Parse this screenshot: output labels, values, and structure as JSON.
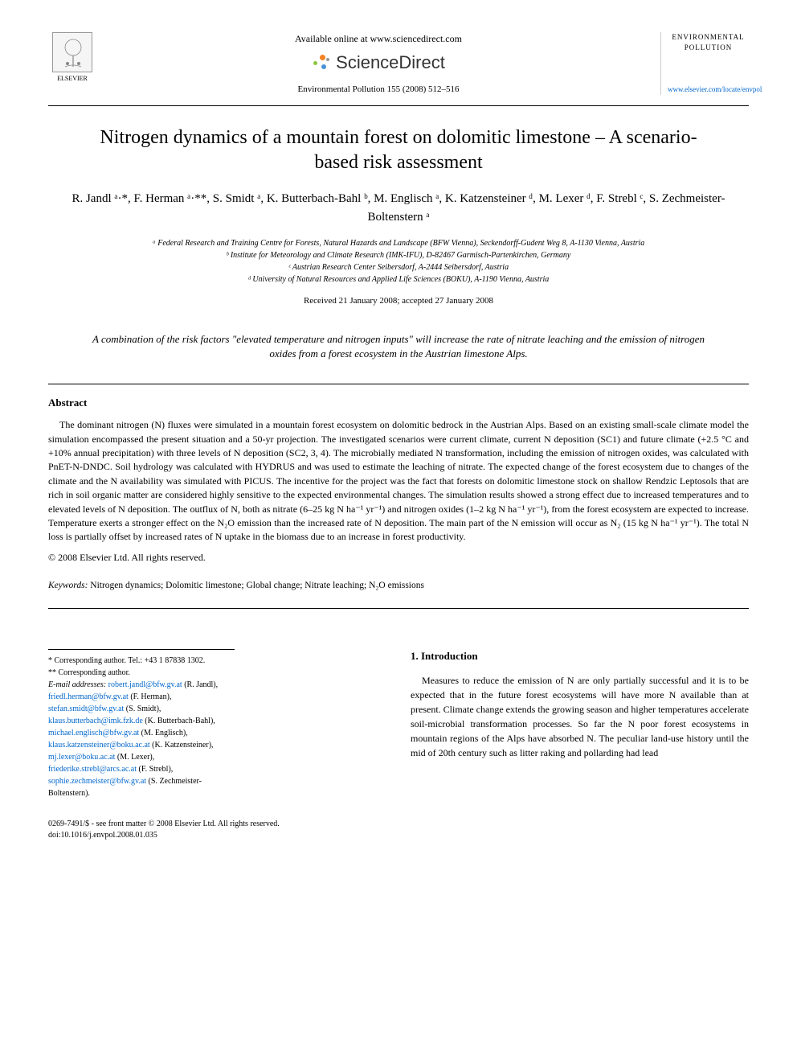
{
  "header": {
    "availableOnline": "Available online at www.sciencedirect.com",
    "scienceDirect": "ScienceDirect",
    "citation": "Environmental Pollution 155 (2008) 512–516",
    "publisherName": "ELSEVIER",
    "journalName": "ENVIRONMENTAL POLLUTION",
    "journalLink": "www.elsevier.com/locate/envpol"
  },
  "title": "Nitrogen dynamics of a mountain forest on dolomitic limestone – A scenario-based risk assessment",
  "authors": "R. Jandl ᵃ·*, F. Herman ᵃ·**, S. Smidt ᵃ, K. Butterbach-Bahl ᵇ, M. Englisch ᵃ, K. Katzensteiner ᵈ, M. Lexer ᵈ, F. Strebl ᶜ, S. Zechmeister-Boltenstern ᵃ",
  "affiliations": {
    "a": "ᵃ Federal Research and Training Centre for Forests, Natural Hazards and Landscape (BFW Vienna), Seckendorff-Gudent Weg 8, A-1130 Vienna, Austria",
    "b": "ᵇ Institute for Meteorology and Climate Research (IMK-IFU), D-82467 Garmisch-Partenkirchen, Germany",
    "c": "ᶜ Austrian Research Center Seibersdorf, A-2444 Seibersdorf, Austria",
    "d": "ᵈ University of Natural Resources and Applied Life Sciences (BOKU), A-1190 Vienna, Austria"
  },
  "dates": "Received 21 January 2008; accepted 27 January 2008",
  "highlight": "A combination of the risk factors \"elevated temperature and nitrogen inputs\" will increase the rate of nitrate leaching and the emission of nitrogen oxides from a forest ecosystem in the Austrian limestone Alps.",
  "abstractHeading": "Abstract",
  "abstractText": "The dominant nitrogen (N) fluxes were simulated in a mountain forest ecosystem on dolomitic bedrock in the Austrian Alps. Based on an existing small-scale climate model the simulation encompassed the present situation and a 50-yr projection. The investigated scenarios were current climate, current N deposition (SC1) and future climate (+2.5 °C and +10% annual precipitation) with three levels of N deposition (SC2, 3, 4). The microbially mediated N transformation, including the emission of nitrogen oxides, was calculated with PnET-N-DNDC. Soil hydrology was calculated with HYDRUS and was used to estimate the leaching of nitrate. The expected change of the forest ecosystem due to changes of the climate and the N availability was simulated with PICUS. The incentive for the project was the fact that forests on dolomitic limestone stock on shallow Rendzic Leptosols that are rich in soil organic matter are considered highly sensitive to the expected environmental changes. The simulation results showed a strong effect due to increased temperatures and to elevated levels of N deposition. The outflux of N, both as nitrate (6–25 kg N ha⁻¹ yr⁻¹) and nitrogen oxides (1–2 kg N ha⁻¹ yr⁻¹), from the forest ecosystem are expected to increase. Temperature exerts a stronger effect on the N₂O emission than the increased rate of N deposition. The main part of the N emission will occur as N₂ (15 kg N ha⁻¹ yr⁻¹). The total N loss is partially offset by increased rates of N uptake in the biomass due to an increase in forest productivity.",
  "copyright": "© 2008 Elsevier Ltd. All rights reserved.",
  "keywordsLabel": "Keywords:",
  "keywords": "Nitrogen dynamics; Dolomitic limestone; Global change; Nitrate leaching; N₂O emissions",
  "footnotes": {
    "corr1": "* Corresponding author. Tel.: +43 1 87838 1302.",
    "corr2": "** Corresponding author.",
    "emailLabel": "E-mail addresses:",
    "emails": [
      {
        "addr": "robert.jandl@bfw.gv.at",
        "name": "(R. Jandl)"
      },
      {
        "addr": "friedl.herman@bfw.gv.at",
        "name": "(F. Herman)"
      },
      {
        "addr": "stefan.smidt@bfw.gv.at",
        "name": "(S. Smidt)"
      },
      {
        "addr": "klaus.butterbach@imk.fzk.de",
        "name": "(K. Butterbach-Bahl)"
      },
      {
        "addr": "michael.englisch@bfw.gv.at",
        "name": "(M. Englisch)"
      },
      {
        "addr": "klaus.katzensteiner@boku.ac.at",
        "name": "(K. Katzensteiner)"
      },
      {
        "addr": "mj.lexer@boku.ac.at",
        "name": "(M. Lexer)"
      },
      {
        "addr": "friederike.strebl@arcs.ac.at",
        "name": "(F. Strebl)"
      },
      {
        "addr": "sophie.zechmeister@bfw.gv.at",
        "name": "(S. Zechmeister-Boltenstern)"
      }
    ]
  },
  "introHeading": "1. Introduction",
  "introText": "Measures to reduce the emission of N are only partially successful and it is to be expected that in the future forest ecosystems will have more N available than at present. Climate change extends the growing season and higher temperatures accelerate soil-microbial transformation processes. So far the N poor forest ecosystems in mountain regions of the Alps have absorbed N. The peculiar land-use history until the mid of 20th century such as litter raking and pollarding had lead",
  "footer": {
    "issn": "0269-7491/$ - see front matter © 2008 Elsevier Ltd. All rights reserved.",
    "doi": "doi:10.1016/j.envpol.2008.01.035"
  },
  "colors": {
    "link": "#0066cc",
    "sdOrange": "#f58220",
    "sdGreen": "#8cc63f",
    "sdBlue": "#4a90d9",
    "sdGray": "#999999"
  }
}
